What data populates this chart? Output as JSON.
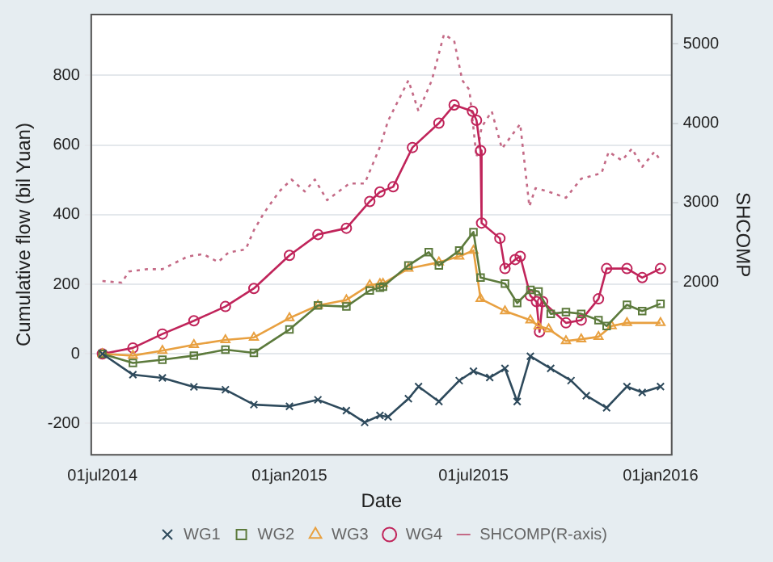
{
  "chart_data": {
    "type": "line",
    "xlabel": "Date",
    "ylabel": "Cumulative flow (bil Yuan)",
    "y2label": "SHCOMP",
    "xlim": [
      "2014-06-20",
      "2016-01-12"
    ],
    "xticks": [
      {
        "value": "2014-07-01",
        "label": "01jul2014"
      },
      {
        "value": "2015-01-01",
        "label": "01jan2015"
      },
      {
        "value": "2015-07-01",
        "label": "01jul2015"
      },
      {
        "value": "2016-01-01",
        "label": "01jan2016"
      }
    ],
    "ylim": [
      -290,
      975
    ],
    "yticks": [
      -200,
      0,
      200,
      400,
      600,
      800
    ],
    "y2lim": [
      -180,
      5370
    ],
    "y2ticks": [
      2000,
      3000,
      4000,
      5000
    ],
    "grid": "y",
    "legend": "bottom",
    "line_style": "solid",
    "series": [
      {
        "name": "WG1",
        "color": "#2e4a5c",
        "marker": "cross",
        "x": [
          "2014-07-01",
          "2014-07-31",
          "2014-08-29",
          "2014-09-29",
          "2014-10-30",
          "2014-11-27",
          "2015-01-01",
          "2015-01-29",
          "2015-02-26",
          "2015-03-16",
          "2015-03-31",
          "2015-04-08",
          "2015-04-28",
          "2015-05-08",
          "2015-05-28",
          "2015-06-17",
          "2015-07-01",
          "2015-07-17",
          "2015-08-01",
          "2015-08-13",
          "2015-08-26",
          "2015-09-15",
          "2015-10-05",
          "2015-10-20",
          "2015-11-09",
          "2015-11-29",
          "2015-12-14",
          "2016-01-01"
        ],
        "values": [
          0,
          -60,
          -69,
          -95,
          -103,
          -146,
          -151,
          -132,
          -163,
          -197,
          -177,
          -181,
          -129,
          -94,
          -137,
          -77,
          -50,
          -68,
          -42,
          -137,
          -7,
          -42,
          -77,
          -120,
          -155,
          -94,
          -111,
          -94
        ]
      },
      {
        "name": "WG2",
        "color": "#5c7a3c",
        "marker": "square",
        "x": [
          "2014-07-01",
          "2014-07-31",
          "2014-08-29",
          "2014-09-29",
          "2014-10-30",
          "2014-11-27",
          "2015-01-01",
          "2015-01-29",
          "2015-02-26",
          "2015-03-21",
          "2015-03-31",
          "2015-04-03",
          "2015-04-28",
          "2015-05-18",
          "2015-05-28",
          "2015-06-17",
          "2015-07-01",
          "2015-07-08",
          "2015-08-01",
          "2015-08-13",
          "2015-08-26",
          "2015-09-03",
          "2015-09-15",
          "2015-09-30",
          "2015-10-15",
          "2015-11-01",
          "2015-11-09",
          "2015-11-29",
          "2015-12-14",
          "2016-01-01"
        ],
        "values": [
          0,
          -26,
          -17,
          -5,
          12,
          3,
          70,
          139,
          136,
          182,
          190,
          193,
          254,
          292,
          254,
          297,
          350,
          219,
          202,
          146,
          184,
          179,
          115,
          120,
          115,
          97,
          80,
          141,
          123,
          144
        ]
      },
      {
        "name": "WG3",
        "color": "#e8a040",
        "marker": "triangle",
        "x": [
          "2014-07-01",
          "2014-07-31",
          "2014-08-29",
          "2014-09-29",
          "2014-10-30",
          "2014-11-27",
          "2015-01-01",
          "2015-01-29",
          "2015-02-26",
          "2015-03-21",
          "2015-03-31",
          "2015-04-03",
          "2015-04-28",
          "2015-05-28",
          "2015-06-17",
          "2015-07-01",
          "2015-07-08",
          "2015-08-01",
          "2015-08-26",
          "2015-09-03",
          "2015-09-13",
          "2015-09-30",
          "2015-10-15",
          "2015-11-01",
          "2015-11-14",
          "2015-11-29",
          "2016-01-01"
        ],
        "values": [
          0,
          -5,
          9,
          26,
          40,
          47,
          103,
          139,
          155,
          198,
          201,
          202,
          245,
          263,
          280,
          297,
          158,
          123,
          97,
          80,
          71,
          37,
          42,
          49,
          80,
          89,
          89
        ]
      },
      {
        "name": "WG4",
        "color": "#c0245a",
        "marker": "circle",
        "x": [
          "2014-07-01",
          "2014-07-31",
          "2014-08-29",
          "2014-09-29",
          "2014-10-30",
          "2014-11-27",
          "2015-01-01",
          "2015-01-29",
          "2015-02-26",
          "2015-03-21",
          "2015-03-31",
          "2015-04-13",
          "2015-05-02",
          "2015-05-28",
          "2015-06-12",
          "2015-06-30",
          "2015-07-04",
          "2015-07-08",
          "2015-07-09",
          "2015-07-27",
          "2015-08-01",
          "2015-08-11",
          "2015-08-16",
          "2015-08-26",
          "2015-09-01",
          "2015-09-04",
          "2015-09-07",
          "2015-09-30",
          "2015-10-15",
          "2015-11-01",
          "2015-11-09",
          "2015-11-29",
          "2015-12-14",
          "2016-01-01"
        ],
        "values": [
          0,
          17,
          57,
          95,
          136,
          188,
          283,
          343,
          361,
          438,
          465,
          480,
          593,
          663,
          715,
          697,
          671,
          584,
          376,
          332,
          245,
          271,
          280,
          167,
          150,
          63,
          150,
          89,
          97,
          158,
          245,
          245,
          219,
          245
        ]
      },
      {
        "name": "SHCOMP(R-axis)",
        "color": "#c46a86",
        "axis": "y2",
        "marker": "none",
        "line_style": "dotted",
        "x": [
          "2014-07-01",
          "2014-07-20",
          "2014-07-27",
          "2014-08-14",
          "2014-08-29",
          "2014-09-23",
          "2014-10-08",
          "2014-10-23",
          "2014-11-02",
          "2014-11-19",
          "2014-11-27",
          "2014-12-07",
          "2014-12-22",
          "2015-01-03",
          "2015-01-16",
          "2015-01-26",
          "2015-02-07",
          "2015-03-01",
          "2015-03-16",
          "2015-03-31",
          "2015-04-08",
          "2015-04-28",
          "2015-05-08",
          "2015-05-21",
          "2015-06-02",
          "2015-06-12",
          "2015-06-20",
          "2015-06-27",
          "2015-07-04",
          "2015-07-09",
          "2015-07-19",
          "2015-07-29",
          "2015-08-16",
          "2015-08-25",
          "2015-08-31",
          "2015-09-12",
          "2015-09-30",
          "2015-10-15",
          "2015-11-04",
          "2015-11-11",
          "2015-11-24",
          "2015-12-04",
          "2015-12-14",
          "2015-12-26",
          "2016-01-01"
        ],
        "values": [
          2010,
          1990,
          2130,
          2160,
          2160,
          2320,
          2350,
          2250,
          2370,
          2410,
          2650,
          2870,
          3140,
          3290,
          3140,
          3290,
          3030,
          3240,
          3240,
          3700,
          4030,
          4540,
          4150,
          4540,
          5120,
          5040,
          4540,
          4420,
          3570,
          3950,
          4150,
          3680,
          3990,
          2950,
          3180,
          3140,
          3060,
          3300,
          3370,
          3640,
          3530,
          3680,
          3450,
          3640,
          3530
        ]
      }
    ]
  }
}
